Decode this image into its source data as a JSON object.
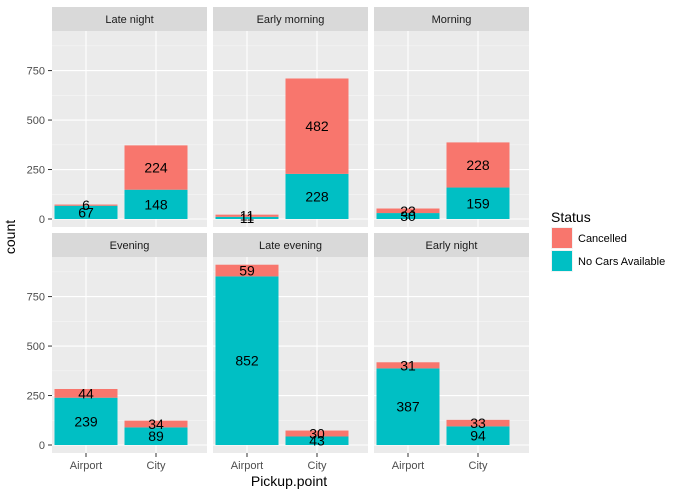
{
  "chart_data": {
    "type": "bar",
    "stacked": true,
    "xlabel": "Pickup.point",
    "ylabel": "count",
    "ylim": [
      0,
      950
    ],
    "yticks": [
      0,
      250,
      500,
      750
    ],
    "categories": [
      "Airport",
      "City"
    ],
    "legend": {
      "title": "Status",
      "position": "right",
      "entries": [
        {
          "name": "Cancelled",
          "color": "#F8766D"
        },
        {
          "name": "No Cars Available",
          "color": "#00BFC4"
        }
      ]
    },
    "facets": [
      {
        "label": "Late night",
        "series": [
          {
            "name": "Cancelled",
            "values": [
              6,
              224
            ]
          },
          {
            "name": "No Cars Available",
            "values": [
              67,
              148
            ]
          }
        ]
      },
      {
        "label": "Early morning",
        "series": [
          {
            "name": "Cancelled",
            "values": [
              11,
              482
            ]
          },
          {
            "name": "No Cars Available",
            "values": [
              11,
              228
            ]
          }
        ]
      },
      {
        "label": "Morning",
        "series": [
          {
            "name": "Cancelled",
            "values": [
              23,
              228
            ]
          },
          {
            "name": "No Cars Available",
            "values": [
              30,
              159
            ]
          }
        ]
      },
      {
        "label": "Evening",
        "series": [
          {
            "name": "Cancelled",
            "values": [
              44,
              34
            ]
          },
          {
            "name": "No Cars Available",
            "values": [
              239,
              89
            ]
          }
        ]
      },
      {
        "label": "Late evening",
        "series": [
          {
            "name": "Cancelled",
            "values": [
              59,
              30
            ]
          },
          {
            "name": "No Cars Available",
            "values": [
              852,
              43
            ]
          }
        ]
      },
      {
        "label": "Early night",
        "series": [
          {
            "name": "Cancelled",
            "values": [
              31,
              33
            ]
          },
          {
            "name": "No Cars Available",
            "values": [
              387,
              94
            ]
          }
        ]
      }
    ],
    "grid": true
  }
}
